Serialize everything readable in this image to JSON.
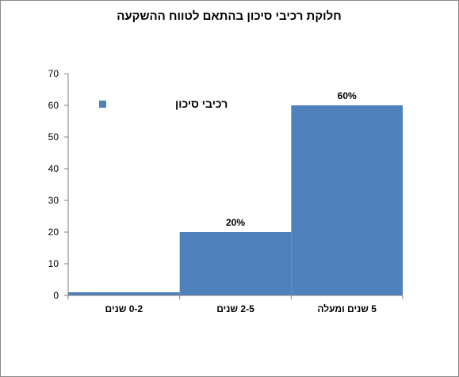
{
  "chart_data": {
    "type": "bar",
    "title": "חלוקת רכיבי סיכון בהתאם לטווח ההשקעה",
    "xlabel": "",
    "ylabel": "",
    "categories": [
      "0-2  שנים",
      "2-5  שנים",
      "5  שנים ומעלה"
    ],
    "series": [
      {
        "name": "רכיבי סיכון",
        "values": [
          1,
          20,
          60
        ],
        "data_labels": [
          "",
          "20%",
          "60%"
        ],
        "color": "#4F81BD"
      }
    ],
    "ylim": [
      0,
      70
    ],
    "yticks": [
      0,
      10,
      20,
      30,
      40,
      50,
      60,
      70
    ],
    "grid": false,
    "legend_position": "top-left"
  }
}
